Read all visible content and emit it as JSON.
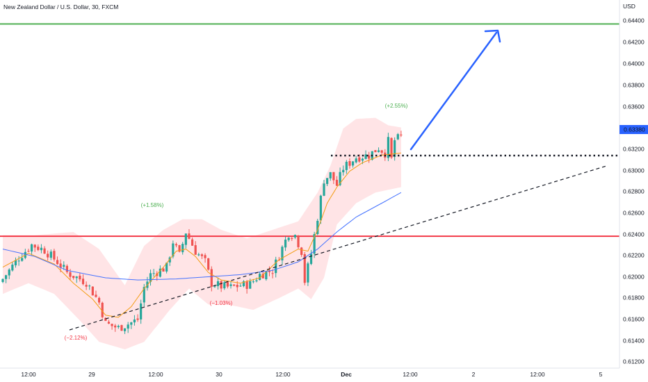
{
  "header": {
    "title": "New Zealand Dollar / U.S. Dollar, 30, FXCM",
    "currency": "USD"
  },
  "colors": {
    "up": "#26a69a",
    "down": "#ef5350",
    "sma_fast": "#f39c12",
    "sma_slow": "#4472ff",
    "bands": "#ffcdd2",
    "resistance": "#4caf50",
    "support": "#f23645",
    "arrow": "#2962ff",
    "price_tag": "#2962ff",
    "pct_up": "#4caf50",
    "pct_down": "#f23645"
  },
  "chart_data": {
    "type": "candlestick",
    "symbol": "NZDUSD",
    "interval": "30",
    "last_price": "0.63380",
    "y_ticks": [
      "0.64400",
      "0.64200",
      "0.64000",
      "0.63800",
      "0.63600",
      "0.63200",
      "0.63000",
      "0.62800",
      "0.62600",
      "0.62400",
      "0.62200",
      "0.62000",
      "0.61800",
      "0.61600",
      "0.61400",
      "0.61200"
    ],
    "x_ticks": [
      "12:00",
      "29",
      "12:00",
      "30",
      "12:00",
      "Dec",
      "12:00",
      "2",
      "12:00",
      "5"
    ],
    "ylim": [
      0.6118,
      0.6452
    ],
    "horizontal_levels": [
      {
        "name": "resistance",
        "value": 0.6443
      },
      {
        "name": "support",
        "value": 0.6244
      }
    ],
    "annotations": [
      {
        "text": "(−2.12%)",
        "kind": "down"
      },
      {
        "text": "(+1.58%)",
        "kind": "up"
      },
      {
        "text": "(−1.03%)",
        "kind": "down"
      },
      {
        "text": "(+2.55%)",
        "kind": "up"
      }
    ],
    "close_path": [
      [
        0,
        0.6204
      ],
      [
        5,
        0.6224
      ],
      [
        9,
        0.6236
      ],
      [
        13,
        0.6231
      ],
      [
        17,
        0.622
      ],
      [
        20,
        0.621
      ],
      [
        26,
        0.6201
      ],
      [
        30,
        0.6182
      ],
      [
        32,
        0.6162
      ],
      [
        36,
        0.6158
      ],
      [
        40,
        0.6163
      ],
      [
        42,
        0.6166
      ],
      [
        44,
        0.6196
      ],
      [
        46,
        0.6208
      ],
      [
        51,
        0.6215
      ],
      [
        53,
        0.6239
      ],
      [
        55,
        0.6226
      ],
      [
        57,
        0.6248
      ],
      [
        60,
        0.623
      ],
      [
        63,
        0.622
      ],
      [
        65,
        0.62
      ],
      [
        68,
        0.6197
      ],
      [
        71,
        0.6196
      ],
      [
        74,
        0.6198
      ],
      [
        77,
        0.6199
      ],
      [
        80,
        0.6208
      ],
      [
        84,
        0.6212
      ],
      [
        87,
        0.6233
      ],
      [
        89,
        0.6247
      ],
      [
        91,
        0.6245
      ],
      [
        93,
        0.623
      ],
      [
        94,
        0.6202
      ],
      [
        96,
        0.6228
      ],
      [
        98,
        0.6262
      ],
      [
        100,
        0.6297
      ],
      [
        102,
        0.6302
      ],
      [
        104,
        0.6292
      ],
      [
        106,
        0.6308
      ],
      [
        110,
        0.6318
      ],
      [
        114,
        0.632
      ],
      [
        117,
        0.6327
      ],
      [
        119,
        0.6322
      ],
      [
        120,
        0.6333
      ],
      [
        121,
        0.6316
      ],
      [
        122,
        0.6334
      ],
      [
        124,
        0.6337
      ]
    ],
    "ma_fast": [
      [
        0,
        0.6215
      ],
      [
        8,
        0.6228
      ],
      [
        16,
        0.6218
      ],
      [
        22,
        0.62
      ],
      [
        28,
        0.6185
      ],
      [
        32,
        0.617
      ],
      [
        36,
        0.6168
      ],
      [
        40,
        0.6178
      ],
      [
        44,
        0.6195
      ],
      [
        50,
        0.6215
      ],
      [
        54,
        0.623
      ],
      [
        57,
        0.6232
      ],
      [
        60,
        0.6225
      ],
      [
        64,
        0.621
      ],
      [
        68,
        0.6203
      ],
      [
        74,
        0.62
      ],
      [
        80,
        0.6205
      ],
      [
        86,
        0.6222
      ],
      [
        92,
        0.6232
      ],
      [
        95,
        0.623
      ],
      [
        98,
        0.625
      ],
      [
        101,
        0.6275
      ],
      [
        104,
        0.629
      ],
      [
        108,
        0.6305
      ],
      [
        112,
        0.6313
      ],
      [
        118,
        0.632
      ],
      [
        124,
        0.6322
      ]
    ],
    "ma_slow": [
      [
        0,
        0.6232
      ],
      [
        10,
        0.6225
      ],
      [
        20,
        0.6212
      ],
      [
        32,
        0.6205
      ],
      [
        42,
        0.6203
      ],
      [
        54,
        0.6204
      ],
      [
        64,
        0.6206
      ],
      [
        74,
        0.6208
      ],
      [
        84,
        0.6212
      ],
      [
        92,
        0.622
      ],
      [
        98,
        0.6232
      ],
      [
        104,
        0.6248
      ],
      [
        110,
        0.6262
      ],
      [
        118,
        0.6275
      ],
      [
        124,
        0.6285
      ]
    ],
    "bands": {
      "upper": [
        [
          0,
          0.6245
        ],
        [
          10,
          0.6245
        ],
        [
          22,
          0.6248
        ],
        [
          30,
          0.6232
        ],
        [
          38,
          0.6198
        ],
        [
          44,
          0.6235
        ],
        [
          50,
          0.625
        ],
        [
          56,
          0.626
        ],
        [
          62,
          0.626
        ],
        [
          68,
          0.625
        ],
        [
          76,
          0.6242
        ],
        [
          86,
          0.6252
        ],
        [
          92,
          0.6258
        ],
        [
          98,
          0.6285
        ],
        [
          102,
          0.631
        ],
        [
          106,
          0.6345
        ],
        [
          110,
          0.6354
        ],
        [
          116,
          0.6355
        ],
        [
          120,
          0.6348
        ],
        [
          124,
          0.6346
        ]
      ],
      "lower": [
        [
          0,
          0.619
        ],
        [
          8,
          0.62
        ],
        [
          16,
          0.619
        ],
        [
          24,
          0.6165
        ],
        [
          30,
          0.6145
        ],
        [
          38,
          0.6138
        ],
        [
          44,
          0.6145
        ],
        [
          52,
          0.6175
        ],
        [
          58,
          0.6195
        ],
        [
          64,
          0.618
        ],
        [
          70,
          0.618
        ],
        [
          78,
          0.6175
        ],
        [
          86,
          0.6186
        ],
        [
          92,
          0.6195
        ],
        [
          96,
          0.6185
        ],
        [
          100,
          0.6205
        ],
        [
          104,
          0.6255
        ],
        [
          110,
          0.6275
        ],
        [
          116,
          0.6285
        ],
        [
          124,
          0.629
        ]
      ]
    }
  }
}
